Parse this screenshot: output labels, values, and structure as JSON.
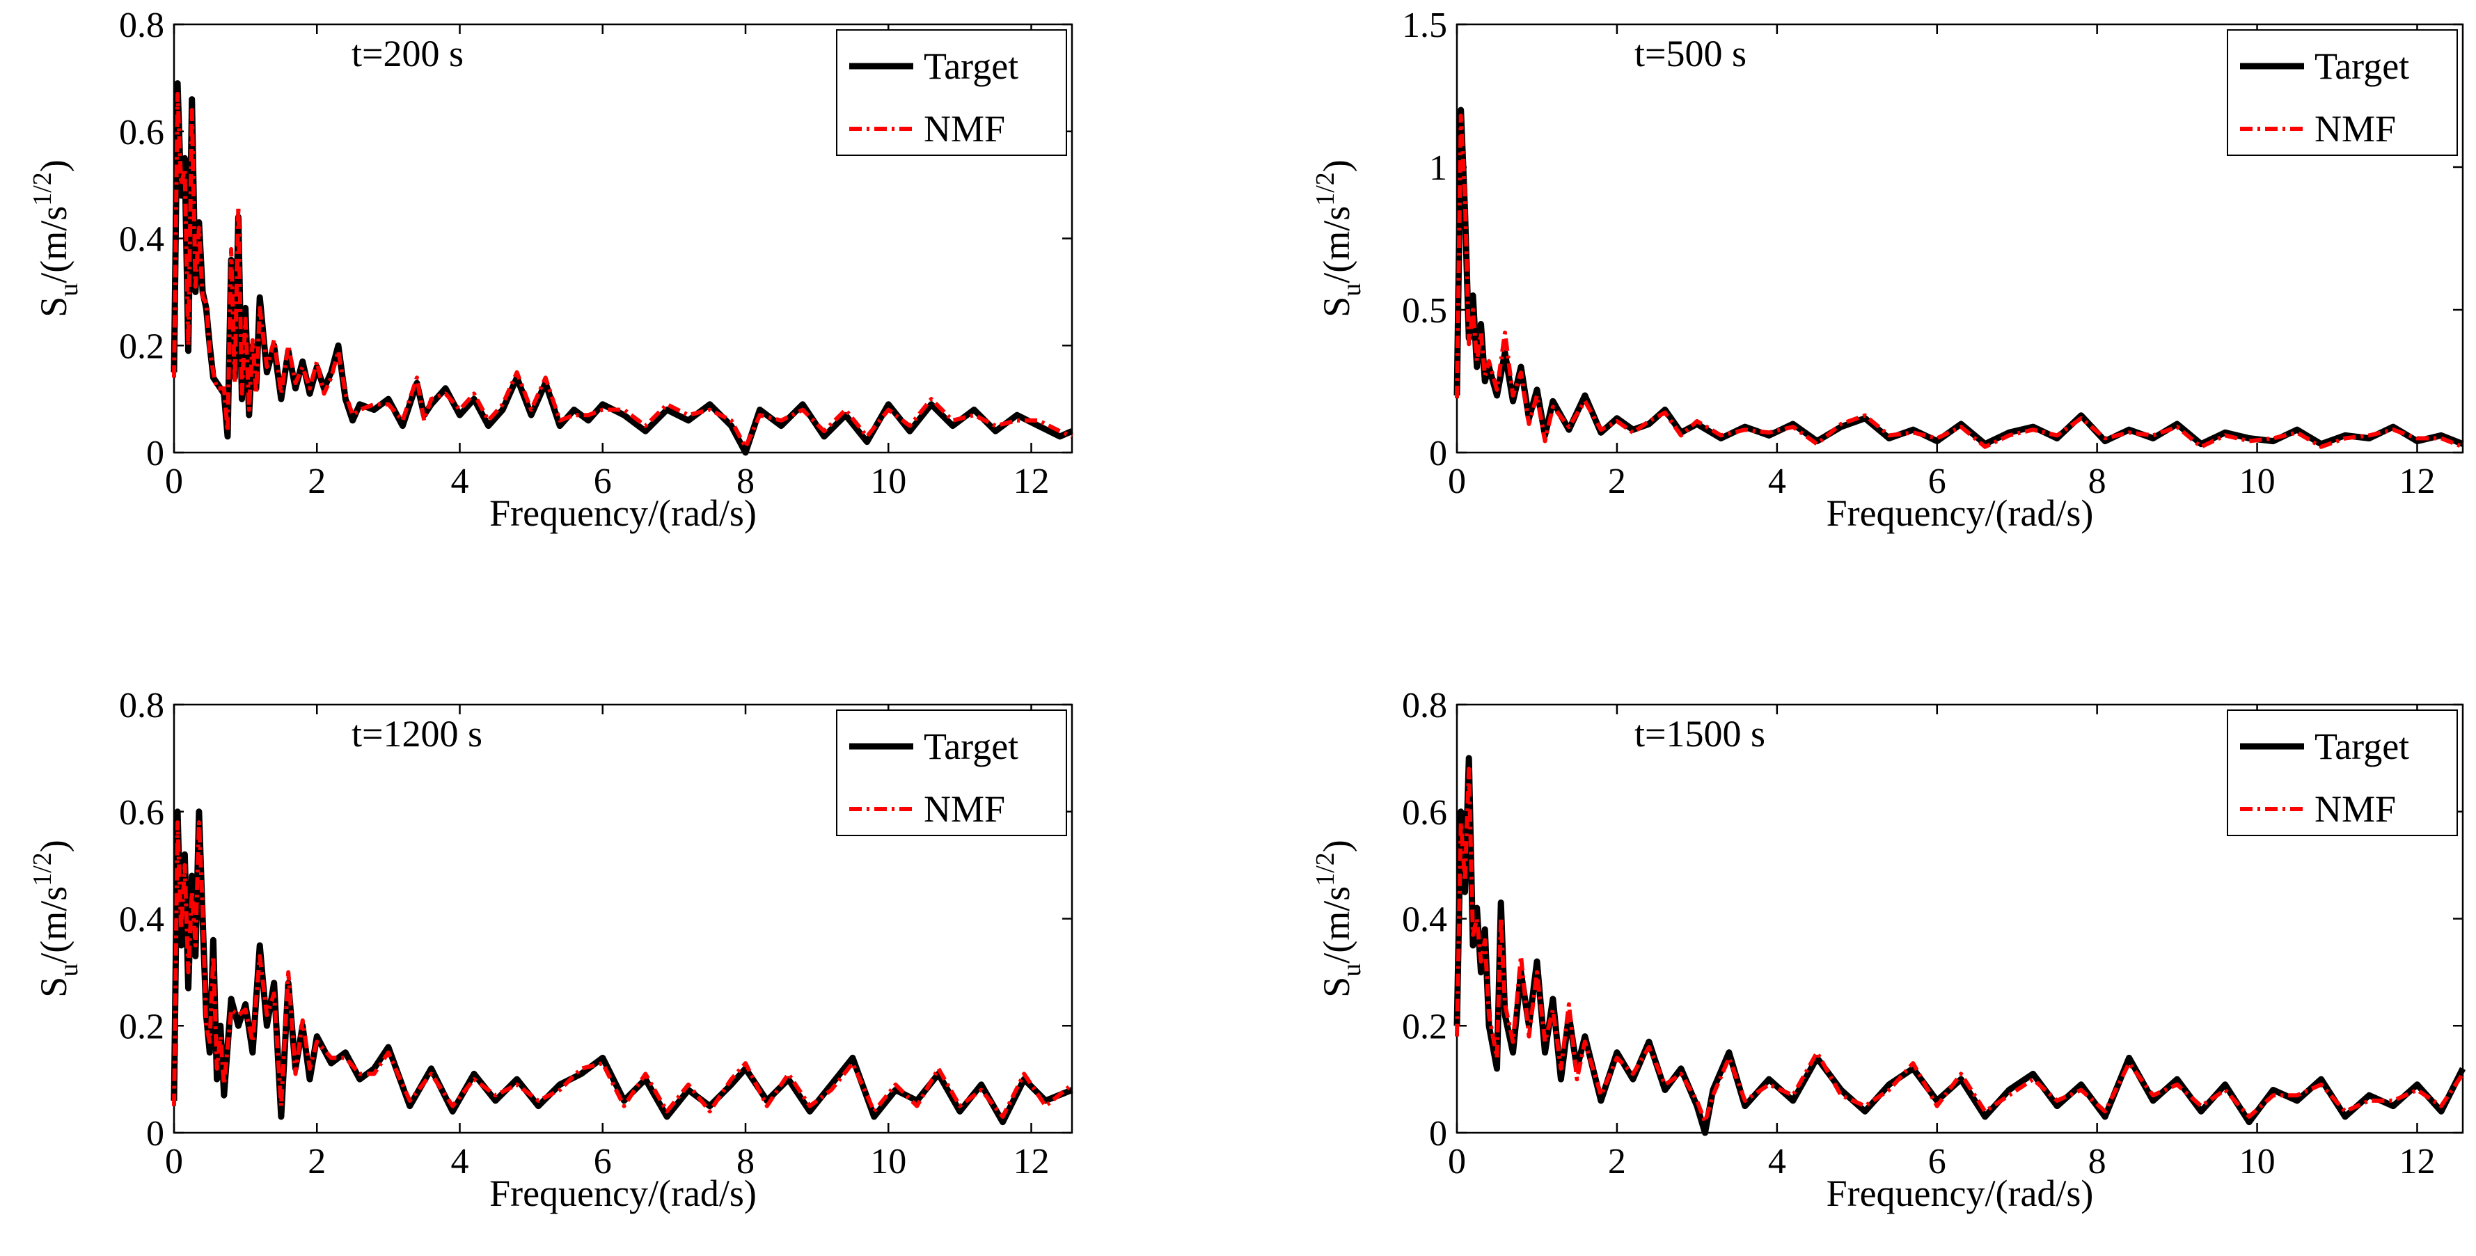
{
  "figure": {
    "panels": [
      {
        "annotation": "t=200 s"
      },
      {
        "annotation": "t=500 s"
      },
      {
        "annotation": "t=1200 s"
      },
      {
        "annotation": "t=1500 s"
      }
    ]
  },
  "chart_data": [
    {
      "type": "line",
      "title": "",
      "annotation": "t=200 s",
      "xlabel": "Frequency/(rad/s)",
      "ylabel": {
        "main": "S",
        "sub": "u",
        "unit": "/(m/s",
        "sup": "1/2",
        "close": ")"
      },
      "xlim": [
        0,
        12.57
      ],
      "ylim": [
        0,
        0.8
      ],
      "xticks": [
        0,
        2,
        4,
        6,
        8,
        10,
        12
      ],
      "yticks": [
        0,
        0.2,
        0.4,
        0.6,
        0.8
      ],
      "ytick_labels": [
        "0",
        "0.2",
        "0.4",
        "0.6",
        "0.8"
      ],
      "legend": {
        "position": "top-right",
        "entries": [
          "Target",
          "NMF"
        ]
      },
      "colors": {
        "Target": "#000000",
        "NMF": "#ff0000"
      },
      "x": [
        0,
        0.05,
        0.1,
        0.15,
        0.2,
        0.25,
        0.3,
        0.35,
        0.4,
        0.45,
        0.5,
        0.55,
        0.6,
        0.7,
        0.75,
        0.8,
        0.85,
        0.9,
        0.95,
        1.0,
        1.05,
        1.1,
        1.15,
        1.2,
        1.3,
        1.4,
        1.5,
        1.6,
        1.7,
        1.8,
        1.9,
        2.0,
        2.1,
        2.2,
        2.3,
        2.4,
        2.5,
        2.6,
        2.8,
        3.0,
        3.2,
        3.4,
        3.5,
        3.6,
        3.8,
        4.0,
        4.2,
        4.4,
        4.6,
        4.8,
        5.0,
        5.2,
        5.4,
        5.6,
        5.8,
        6.0,
        6.3,
        6.6,
        6.9,
        7.2,
        7.5,
        7.8,
        8.0,
        8.2,
        8.5,
        8.8,
        9.1,
        9.4,
        9.7,
        10.0,
        10.3,
        10.6,
        10.9,
        11.2,
        11.5,
        11.8,
        12.1,
        12.4,
        12.57
      ],
      "series": [
        {
          "name": "Target",
          "values": [
            0.15,
            0.69,
            0.48,
            0.55,
            0.19,
            0.66,
            0.3,
            0.43,
            0.3,
            0.27,
            0.2,
            0.14,
            0.13,
            0.11,
            0.03,
            0.36,
            0.14,
            0.44,
            0.1,
            0.27,
            0.07,
            0.2,
            0.12,
            0.29,
            0.15,
            0.2,
            0.1,
            0.19,
            0.12,
            0.17,
            0.11,
            0.16,
            0.12,
            0.15,
            0.2,
            0.1,
            0.06,
            0.09,
            0.08,
            0.1,
            0.05,
            0.13,
            0.07,
            0.09,
            0.12,
            0.07,
            0.1,
            0.05,
            0.08,
            0.14,
            0.07,
            0.13,
            0.05,
            0.08,
            0.06,
            0.09,
            0.07,
            0.04,
            0.08,
            0.06,
            0.09,
            0.05,
            0.0,
            0.08,
            0.05,
            0.09,
            0.03,
            0.07,
            0.02,
            0.09,
            0.04,
            0.09,
            0.05,
            0.08,
            0.04,
            0.07,
            0.05,
            0.03,
            0.04
          ]
        },
        {
          "name": "NMF",
          "values": [
            0.14,
            0.67,
            0.5,
            0.53,
            0.2,
            0.64,
            0.31,
            0.42,
            0.29,
            0.28,
            0.19,
            0.15,
            0.12,
            0.12,
            0.04,
            0.38,
            0.13,
            0.46,
            0.11,
            0.25,
            0.08,
            0.21,
            0.11,
            0.27,
            0.16,
            0.21,
            0.11,
            0.2,
            0.13,
            0.16,
            0.12,
            0.17,
            0.11,
            0.14,
            0.19,
            0.11,
            0.07,
            0.08,
            0.09,
            0.09,
            0.06,
            0.14,
            0.06,
            0.1,
            0.11,
            0.08,
            0.11,
            0.06,
            0.09,
            0.15,
            0.08,
            0.14,
            0.06,
            0.07,
            0.07,
            0.08,
            0.08,
            0.05,
            0.09,
            0.07,
            0.08,
            0.06,
            0.01,
            0.07,
            0.06,
            0.08,
            0.04,
            0.08,
            0.03,
            0.08,
            0.05,
            0.1,
            0.06,
            0.07,
            0.05,
            0.06,
            0.06,
            0.04,
            0.03
          ]
        }
      ]
    },
    {
      "type": "line",
      "title": "",
      "annotation": "t=500 s",
      "xlabel": "Frequency/(rad/s)",
      "ylabel": {
        "main": "S",
        "sub": "u",
        "unit": "/(m/s",
        "sup": "1/2",
        "close": ")"
      },
      "xlim": [
        0,
        12.57
      ],
      "ylim": [
        0,
        1.5
      ],
      "xticks": [
        0,
        2,
        4,
        6,
        8,
        10,
        12
      ],
      "yticks": [
        0,
        0.5,
        1,
        1.5
      ],
      "ytick_labels": [
        "0",
        "0.5",
        "1",
        "1.5"
      ],
      "legend": {
        "position": "top-right",
        "entries": [
          "Target",
          "NMF"
        ]
      },
      "colors": {
        "Target": "#000000",
        "NMF": "#ff0000"
      },
      "x": [
        0,
        0.05,
        0.1,
        0.15,
        0.2,
        0.25,
        0.3,
        0.35,
        0.4,
        0.5,
        0.6,
        0.7,
        0.8,
        0.9,
        1.0,
        1.1,
        1.2,
        1.4,
        1.6,
        1.8,
        2.0,
        2.2,
        2.4,
        2.6,
        2.8,
        3.0,
        3.3,
        3.6,
        3.9,
        4.2,
        4.5,
        4.8,
        5.1,
        5.4,
        5.7,
        6.0,
        6.3,
        6.6,
        6.9,
        7.2,
        7.5,
        7.8,
        8.1,
        8.4,
        8.7,
        9.0,
        9.3,
        9.6,
        9.9,
        10.2,
        10.5,
        10.8,
        11.1,
        11.4,
        11.7,
        12.0,
        12.3,
        12.57
      ],
      "series": [
        {
          "name": "Target",
          "values": [
            0.2,
            1.2,
            0.85,
            0.4,
            0.55,
            0.3,
            0.45,
            0.25,
            0.3,
            0.2,
            0.35,
            0.18,
            0.3,
            0.12,
            0.22,
            0.06,
            0.18,
            0.08,
            0.2,
            0.07,
            0.12,
            0.08,
            0.1,
            0.15,
            0.07,
            0.1,
            0.05,
            0.09,
            0.06,
            0.1,
            0.04,
            0.09,
            0.12,
            0.05,
            0.08,
            0.04,
            0.1,
            0.03,
            0.07,
            0.09,
            0.05,
            0.13,
            0.04,
            0.08,
            0.05,
            0.1,
            0.03,
            0.07,
            0.05,
            0.04,
            0.08,
            0.03,
            0.06,
            0.05,
            0.09,
            0.04,
            0.06,
            0.03
          ]
        },
        {
          "name": "NMF",
          "values": [
            0.19,
            1.18,
            0.9,
            0.38,
            0.5,
            0.32,
            0.42,
            0.27,
            0.32,
            0.22,
            0.42,
            0.2,
            0.28,
            0.1,
            0.2,
            0.04,
            0.16,
            0.09,
            0.18,
            0.08,
            0.11,
            0.07,
            0.11,
            0.14,
            0.06,
            0.11,
            0.06,
            0.08,
            0.07,
            0.09,
            0.03,
            0.1,
            0.13,
            0.06,
            0.07,
            0.05,
            0.09,
            0.02,
            0.06,
            0.08,
            0.06,
            0.12,
            0.05,
            0.07,
            0.06,
            0.09,
            0.02,
            0.06,
            0.04,
            0.05,
            0.07,
            0.02,
            0.05,
            0.06,
            0.08,
            0.05,
            0.05,
            0.02
          ]
        }
      ]
    },
    {
      "type": "line",
      "title": "",
      "annotation": "t=1200 s",
      "xlabel": "Frequency/(rad/s)",
      "ylabel": {
        "main": "S",
        "sub": "u",
        "unit": "/(m/s",
        "sup": "1/2",
        "close": ")"
      },
      "xlim": [
        0,
        12.57
      ],
      "ylim": [
        0,
        0.8
      ],
      "xticks": [
        0,
        2,
        4,
        6,
        8,
        10,
        12
      ],
      "yticks": [
        0,
        0.2,
        0.4,
        0.6,
        0.8
      ],
      "ytick_labels": [
        "0",
        "0.2",
        "0.4",
        "0.6",
        "0.8"
      ],
      "legend": {
        "position": "top-right",
        "entries": [
          "Target",
          "NMF"
        ]
      },
      "colors": {
        "Target": "#000000",
        "NMF": "#ff0000"
      },
      "x": [
        0,
        0.05,
        0.1,
        0.15,
        0.2,
        0.25,
        0.3,
        0.35,
        0.4,
        0.45,
        0.5,
        0.55,
        0.6,
        0.65,
        0.7,
        0.8,
        0.9,
        1.0,
        1.1,
        1.2,
        1.3,
        1.4,
        1.5,
        1.6,
        1.7,
        1.8,
        1.9,
        2.0,
        2.2,
        2.4,
        2.6,
        2.8,
        3.0,
        3.3,
        3.6,
        3.9,
        4.2,
        4.5,
        4.8,
        5.1,
        5.4,
        5.7,
        6.0,
        6.3,
        6.6,
        6.9,
        7.2,
        7.5,
        7.8,
        8.0,
        8.3,
        8.6,
        8.9,
        9.2,
        9.5,
        9.8,
        10.1,
        10.4,
        10.7,
        11.0,
        11.3,
        11.6,
        11.9,
        12.2,
        12.57
      ],
      "series": [
        {
          "name": "Target",
          "values": [
            0.06,
            0.6,
            0.35,
            0.52,
            0.27,
            0.48,
            0.33,
            0.6,
            0.4,
            0.22,
            0.15,
            0.36,
            0.1,
            0.2,
            0.07,
            0.25,
            0.2,
            0.24,
            0.15,
            0.35,
            0.2,
            0.28,
            0.03,
            0.28,
            0.12,
            0.2,
            0.1,
            0.18,
            0.13,
            0.15,
            0.1,
            0.12,
            0.16,
            0.05,
            0.12,
            0.04,
            0.11,
            0.06,
            0.1,
            0.05,
            0.09,
            0.11,
            0.14,
            0.06,
            0.1,
            0.03,
            0.08,
            0.05,
            0.09,
            0.12,
            0.06,
            0.1,
            0.04,
            0.09,
            0.14,
            0.03,
            0.08,
            0.06,
            0.11,
            0.04,
            0.09,
            0.02,
            0.1,
            0.06,
            0.08
          ]
        },
        {
          "name": "NMF",
          "values": [
            0.05,
            0.58,
            0.38,
            0.5,
            0.3,
            0.45,
            0.35,
            0.58,
            0.42,
            0.2,
            0.17,
            0.33,
            0.12,
            0.18,
            0.09,
            0.23,
            0.22,
            0.23,
            0.17,
            0.33,
            0.22,
            0.26,
            0.05,
            0.3,
            0.11,
            0.21,
            0.12,
            0.17,
            0.14,
            0.14,
            0.11,
            0.11,
            0.15,
            0.06,
            0.11,
            0.05,
            0.1,
            0.07,
            0.09,
            0.06,
            0.08,
            0.12,
            0.13,
            0.05,
            0.11,
            0.04,
            0.09,
            0.04,
            0.1,
            0.13,
            0.05,
            0.11,
            0.05,
            0.08,
            0.13,
            0.04,
            0.09,
            0.05,
            0.12,
            0.05,
            0.08,
            0.03,
            0.11,
            0.05,
            0.09
          ]
        }
      ]
    },
    {
      "type": "line",
      "title": "",
      "annotation": "t=1500 s",
      "xlabel": "Frequency/(rad/s)",
      "ylabel": {
        "main": "S",
        "sub": "u",
        "unit": "/(m/s",
        "sup": "1/2",
        "close": ")"
      },
      "xlim": [
        0,
        12.57
      ],
      "ylim": [
        0,
        0.8
      ],
      "xticks": [
        0,
        2,
        4,
        6,
        8,
        10,
        12
      ],
      "yticks": [
        0,
        0.2,
        0.4,
        0.6,
        0.8
      ],
      "ytick_labels": [
        "0",
        "0.2",
        "0.4",
        "0.6",
        "0.8"
      ],
      "legend": {
        "position": "top-right",
        "entries": [
          "Target",
          "NMF"
        ]
      },
      "colors": {
        "Target": "#000000",
        "NMF": "#ff0000"
      },
      "x": [
        0,
        0.05,
        0.1,
        0.15,
        0.2,
        0.25,
        0.3,
        0.35,
        0.4,
        0.5,
        0.55,
        0.6,
        0.7,
        0.8,
        0.9,
        1.0,
        1.1,
        1.2,
        1.3,
        1.4,
        1.5,
        1.6,
        1.8,
        2.0,
        2.2,
        2.4,
        2.6,
        2.8,
        3.0,
        3.1,
        3.2,
        3.4,
        3.6,
        3.9,
        4.2,
        4.5,
        4.8,
        5.1,
        5.4,
        5.7,
        6.0,
        6.3,
        6.6,
        6.9,
        7.2,
        7.5,
        7.8,
        8.1,
        8.4,
        8.7,
        9.0,
        9.3,
        9.6,
        9.9,
        10.2,
        10.5,
        10.8,
        11.1,
        11.4,
        11.7,
        12.0,
        12.3,
        12.57
      ],
      "series": [
        {
          "name": "Target",
          "values": [
            0.2,
            0.6,
            0.45,
            0.7,
            0.35,
            0.42,
            0.3,
            0.38,
            0.2,
            0.12,
            0.43,
            0.22,
            0.15,
            0.3,
            0.2,
            0.32,
            0.15,
            0.25,
            0.1,
            0.22,
            0.12,
            0.18,
            0.06,
            0.15,
            0.1,
            0.17,
            0.08,
            0.12,
            0.05,
            0.0,
            0.08,
            0.15,
            0.05,
            0.1,
            0.06,
            0.14,
            0.08,
            0.04,
            0.09,
            0.12,
            0.06,
            0.1,
            0.03,
            0.08,
            0.11,
            0.05,
            0.09,
            0.03,
            0.14,
            0.06,
            0.1,
            0.04,
            0.09,
            0.02,
            0.08,
            0.06,
            0.1,
            0.03,
            0.07,
            0.05,
            0.09,
            0.04,
            0.12
          ]
        },
        {
          "name": "NMF",
          "values": [
            0.18,
            0.58,
            0.47,
            0.68,
            0.37,
            0.4,
            0.32,
            0.36,
            0.22,
            0.14,
            0.4,
            0.24,
            0.17,
            0.33,
            0.18,
            0.3,
            0.17,
            0.23,
            0.12,
            0.24,
            0.1,
            0.17,
            0.07,
            0.14,
            0.11,
            0.16,
            0.09,
            0.11,
            0.06,
            0.02,
            0.07,
            0.14,
            0.06,
            0.09,
            0.07,
            0.15,
            0.07,
            0.05,
            0.08,
            0.13,
            0.05,
            0.11,
            0.04,
            0.07,
            0.1,
            0.06,
            0.08,
            0.04,
            0.13,
            0.07,
            0.09,
            0.05,
            0.08,
            0.03,
            0.07,
            0.07,
            0.09,
            0.04,
            0.06,
            0.06,
            0.08,
            0.05,
            0.11
          ]
        }
      ]
    }
  ]
}
